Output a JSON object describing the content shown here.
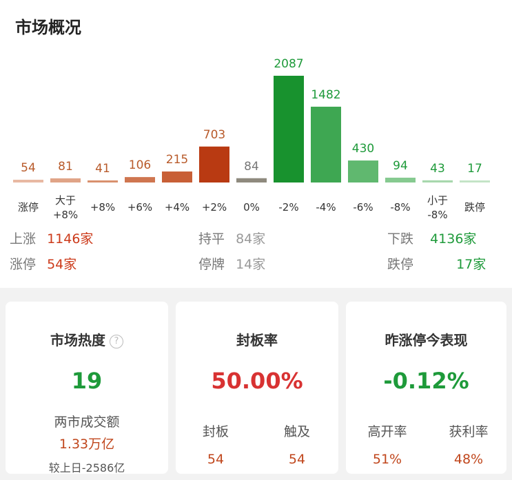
{
  "title": "市场概况",
  "colors": {
    "red": "#cc3a1a",
    "green": "#1e9a3a",
    "gray": "#777777"
  },
  "chart_data": {
    "type": "bar",
    "categories": [
      "涨停",
      "大于\n+8%",
      "+8%",
      "+6%",
      "+4%",
      "+2%",
      "0%",
      "-2%",
      "-4%",
      "-6%",
      "-8%",
      "小于\n-8%",
      "跌停"
    ],
    "values": [
      54,
      81,
      41,
      106,
      215,
      703,
      84,
      2087,
      1482,
      430,
      94,
      43,
      17
    ],
    "colors": [
      "#e8b9a3",
      "#e0a487",
      "#d9916e",
      "#cf7650",
      "#c85f36",
      "#b93a12",
      "#8f8a7e",
      "#18922e",
      "#3ea752",
      "#60b86f",
      "#86ca90",
      "#a8d8ad",
      "#c4e4c7"
    ],
    "label_colors": [
      "#b85a2a",
      "#b85a2a",
      "#b85a2a",
      "#b85a2a",
      "#b85a2a",
      "#b85a2a",
      "#777777",
      "#1e9a3a",
      "#1e9a3a",
      "#1e9a3a",
      "#1e9a3a",
      "#1e9a3a",
      "#1e9a3a"
    ]
  },
  "stats": {
    "rise_label": "上涨",
    "rise_value": "1146家",
    "limit_up_label": "涨停",
    "limit_up_value": "54家",
    "flat_label": "持平",
    "flat_value": "84家",
    "suspend_label": "停牌",
    "suspend_value": "14家",
    "fall_label": "下跌",
    "fall_value": "4136家",
    "limit_down_label": "跌停",
    "limit_down_value": "17家"
  },
  "cards": {
    "heat": {
      "title": "市场热度",
      "help_icon": "?",
      "value": "19",
      "turnover_label": "两市成交额",
      "turnover_value": "1.33万亿",
      "compare": "较上日-2586亿"
    },
    "seal": {
      "title": "封板率",
      "value": "50.00%",
      "sealed_label": "封板",
      "sealed_value": "54",
      "touched_label": "触及",
      "touched_value": "54"
    },
    "perf": {
      "title": "昨涨停今表现",
      "value": "-0.12%",
      "open_label": "高开率",
      "open_value": "51%",
      "profit_label": "获利率",
      "profit_value": "48%"
    }
  }
}
